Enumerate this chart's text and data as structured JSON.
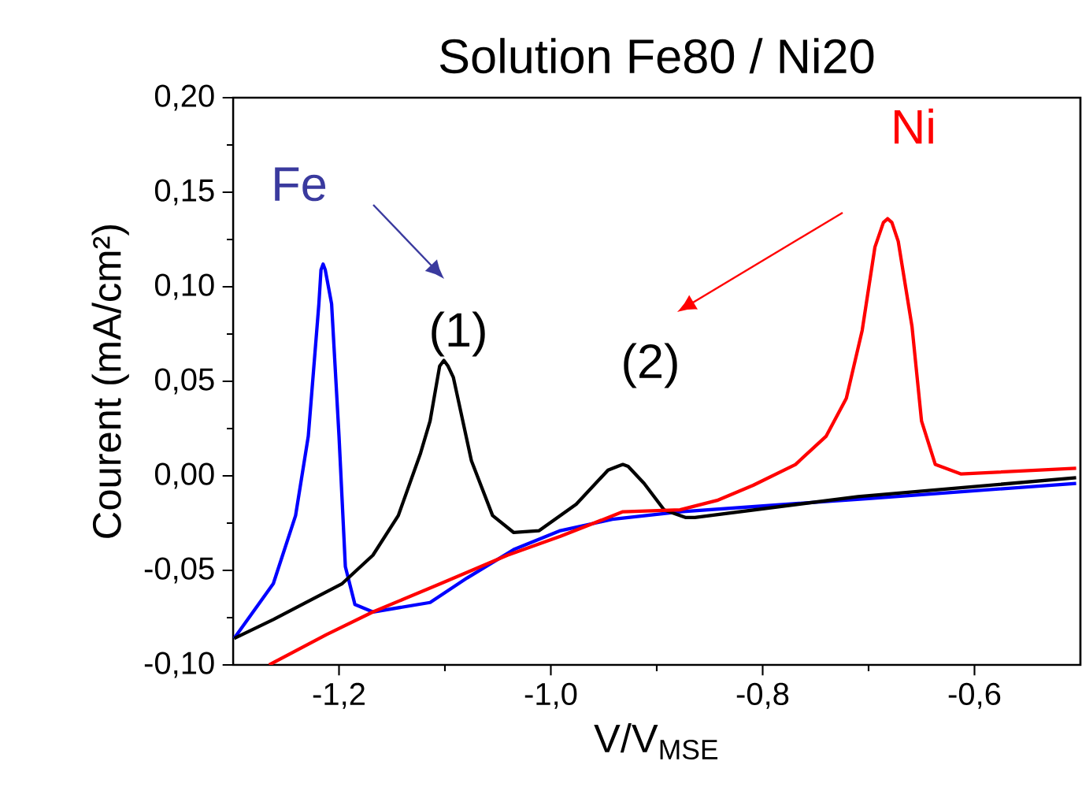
{
  "chart_data": {
    "type": "line",
    "title": "Solution Fe80 / Ni20",
    "xlabel": "V/V$_{MSE}$",
    "ylabel": "Courent (mA/cm²)",
    "xlim": [
      -1.3,
      -0.5
    ],
    "ylim": [
      -0.1,
      0.2
    ],
    "xticks": [
      {
        "value": -1.2,
        "label": "-1,2"
      },
      {
        "value": -1.0,
        "label": "-1,0"
      },
      {
        "value": -0.8,
        "label": "-0,8"
      },
      {
        "value": -0.6,
        "label": "-0,6"
      }
    ],
    "yticks": [
      {
        "value": -0.1,
        "label": "-0,10"
      },
      {
        "value": -0.05,
        "label": "-0,05"
      },
      {
        "value": 0,
        "label": "0,00"
      },
      {
        "value": 0.05,
        "label": "0,05"
      },
      {
        "value": 0.1,
        "label": "0,10"
      },
      {
        "value": 0.15,
        "label": "0,15"
      },
      {
        "value": 0.2,
        "label": "0,20"
      }
    ],
    "grid": false,
    "marker": "none",
    "line_style": "solid",
    "series": [
      {
        "color": "#0000ff",
        "x": [
          -1.299,
          -1.262,
          -1.241,
          -1.229,
          -1.219,
          -1.217,
          -1.215,
          -1.213,
          -1.207,
          -1.2,
          -1.194,
          -1.185,
          -1.168,
          -1.114,
          -1.079,
          -1.035,
          -0.991,
          -0.942,
          -0.878,
          -0.7,
          -0.504
        ],
        "values": [
          -0.086,
          -0.057,
          -0.021,
          0.021,
          0.091,
          0.109,
          0.112,
          0.109,
          0.091,
          0.021,
          -0.048,
          -0.068,
          -0.072,
          -0.067,
          -0.054,
          -0.039,
          -0.029,
          -0.023,
          -0.019,
          -0.012,
          -0.004
        ]
      },
      {
        "color": "#000000",
        "x": [
          -1.299,
          -1.262,
          -1.197,
          -1.168,
          -1.144,
          -1.123,
          -1.114,
          -1.105,
          -1.101,
          -1.097,
          -1.092,
          -1.075,
          -1.055,
          -1.035,
          -1.011,
          -0.976,
          -0.946,
          -0.937,
          -0.932,
          -0.927,
          -0.912,
          -0.893,
          -0.873,
          -0.864,
          -0.71,
          -0.504
        ],
        "values": [
          -0.086,
          -0.076,
          -0.057,
          -0.042,
          -0.021,
          0.012,
          0.029,
          0.058,
          0.061,
          0.058,
          0.052,
          0.008,
          -0.021,
          -0.03,
          -0.029,
          -0.015,
          0.003,
          0.005,
          0.006,
          0.005,
          -0.004,
          -0.018,
          -0.022,
          -0.022,
          -0.011,
          -0.001
        ]
      },
      {
        "color": "#ff0000",
        "x": [
          -1.266,
          -1.212,
          -1.168,
          -1.104,
          -1.041,
          -0.991,
          -0.932,
          -0.878,
          -0.843,
          -0.809,
          -0.769,
          -0.74,
          -0.721,
          -0.706,
          -0.694,
          -0.686,
          -0.682,
          -0.678,
          -0.672,
          -0.659,
          -0.65,
          -0.637,
          -0.613,
          -0.504
        ],
        "values": [
          -0.1,
          -0.084,
          -0.072,
          -0.057,
          -0.042,
          -0.032,
          -0.019,
          -0.018,
          -0.013,
          -0.005,
          0.006,
          0.021,
          0.041,
          0.077,
          0.121,
          0.134,
          0.136,
          0.134,
          0.124,
          0.079,
          0.029,
          0.006,
          0.001,
          0.004
        ]
      }
    ],
    "annotations": [
      "Fe",
      "Ni",
      "(1)",
      "(2)"
    ]
  }
}
